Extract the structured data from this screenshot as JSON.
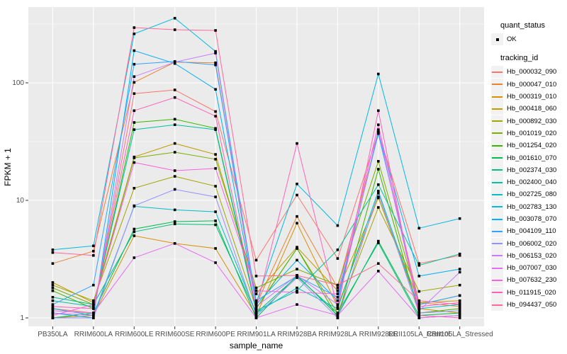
{
  "figure": {
    "panel_bg": "#EBEBEB",
    "grid_color": "#FFFFFF",
    "axis_text_color": "#4D4D4D",
    "tick_color": "#333333",
    "point_color": "#000000"
  },
  "legend": {
    "quant_status_title": "quant_status",
    "quant_status_items": [
      {
        "label": "OK",
        "symbol": "black-point"
      }
    ],
    "tracking_title": "tracking_id"
  },
  "chart_data": {
    "type": "line",
    "title": "",
    "xlabel": "sample_name",
    "ylabel": "FPKM + 1",
    "yscale": "log10",
    "yticks": [
      1,
      10,
      100
    ],
    "ytick_labels": [
      "1",
      "10",
      "100"
    ],
    "minor_gridlines": [
      3.162,
      31.62,
      316.2
    ],
    "ylim": [
      0.85,
      440
    ],
    "grid": true,
    "legend_position": "right",
    "marker": "small-black-point",
    "categories": [
      "PB350LA",
      "RRIM600LA",
      "RRIM600LE",
      "RRIM600SE",
      "RRIM600PE",
      "RRIM901LA",
      "RRIM928BA",
      "RRIM928LA",
      "RRIM928LE",
      "RRII105LA_Control",
      "RRII105LA_Stressed"
    ],
    "series": [
      {
        "name": "Hb_000032_090",
        "color": "#F8766D",
        "values": [
          1.2,
          1.1,
          81,
          87,
          57,
          3.1,
          11.1,
          3.2,
          38,
          2.9,
          3.4
        ]
      },
      {
        "name": "Hb_000047_010",
        "color": "#EA8331",
        "values": [
          2.9,
          3.7,
          101,
          150,
          148,
          1.3,
          7.3,
          1.8,
          37,
          1.35,
          1.25
        ]
      },
      {
        "name": "Hb_000319_010",
        "color": "#D89000",
        "values": [
          1.0,
          1.05,
          5.0,
          4.3,
          3.9,
          1.05,
          6.4,
          1.25,
          10.7,
          1.2,
          1.1
        ]
      },
      {
        "name": "Hb_000418_060",
        "color": "#C09B00",
        "values": [
          2.0,
          1.35,
          23.4,
          30.5,
          24.6,
          1.6,
          4.0,
          1.7,
          10.5,
          1.35,
          1.4
        ]
      },
      {
        "name": "Hb_000892_030",
        "color": "#A3A500",
        "values": [
          1.9,
          1.4,
          12.7,
          16.0,
          13.2,
          1.2,
          3.9,
          1.1,
          8.7,
          1.68,
          1.9
        ]
      },
      {
        "name": "Hb_001019_020",
        "color": "#7CAE00",
        "values": [
          1.8,
          1.3,
          23.0,
          25.7,
          22.4,
          1.8,
          2.6,
          1.9,
          21.5,
          1.3,
          1.55
        ]
      },
      {
        "name": "Hb_001254_020",
        "color": "#39B600",
        "values": [
          1.7,
          1.2,
          46,
          49,
          41,
          1.2,
          3.9,
          1.0,
          18.4,
          1.1,
          1.2
        ]
      },
      {
        "name": "Hb_001610_070",
        "color": "#00BB4E",
        "values": [
          1.0,
          1.1,
          5.7,
          6.6,
          6.7,
          1.0,
          2.3,
          1.05,
          4.5,
          1.05,
          1.1
        ]
      },
      {
        "name": "Hb_002374_030",
        "color": "#00BF7D",
        "values": [
          1.5,
          1.3,
          5.4,
          6.3,
          6.2,
          1.1,
          2.25,
          1.1,
          4.35,
          1.0,
          1.05
        ]
      },
      {
        "name": "Hb_002400_040",
        "color": "#00C1A3",
        "values": [
          1.4,
          1.25,
          40,
          44,
          40,
          1.15,
          1.7,
          3.8,
          13.6,
          2.8,
          3.5
        ]
      },
      {
        "name": "Hb_002725_080",
        "color": "#00BFC4",
        "values": [
          1.2,
          1.05,
          8.9,
          8.3,
          8.0,
          1.1,
          1.8,
          1.2,
          12.0,
          1.2,
          1.3
        ]
      },
      {
        "name": "Hb_002783_130",
        "color": "#00BAE0",
        "values": [
          3.8,
          4.1,
          261,
          355,
          185,
          1.35,
          13.8,
          6.1,
          119,
          5.8,
          7.0
        ]
      },
      {
        "name": "Hb_003078_070",
        "color": "#00B0F6",
        "values": [
          1.1,
          1.0,
          188,
          146,
          88,
          1.3,
          3.1,
          1.4,
          38,
          2.27,
          2.6
        ]
      },
      {
        "name": "Hb_004109_110",
        "color": "#35A2FF",
        "values": [
          1.3,
          1.9,
          144,
          152,
          142,
          1.4,
          2.27,
          1.5,
          37,
          1.3,
          1.55
        ]
      },
      {
        "name": "Hb_006002_020",
        "color": "#9590FF",
        "values": [
          1.0,
          1.0,
          9.0,
          12.4,
          10.7,
          1.05,
          2.2,
          1.0,
          11.5,
          1.1,
          1.15
        ]
      },
      {
        "name": "Hb_006153_020",
        "color": "#C77CFF",
        "values": [
          1.1,
          1.05,
          113,
          150,
          179,
          1.25,
          2.3,
          1.3,
          40,
          1.15,
          2.45
        ]
      },
      {
        "name": "Hb_007007_030",
        "color": "#E76BF3",
        "values": [
          1.15,
          1.1,
          3.25,
          4.3,
          2.95,
          1.0,
          1.3,
          1.05,
          2.5,
          1.0,
          1.05
        ]
      },
      {
        "name": "Hb_007632_230",
        "color": "#FA62DB",
        "values": [
          1.05,
          1.3,
          21,
          17.9,
          18.7,
          1.7,
          1.65,
          1.6,
          44,
          1.25,
          1.35
        ]
      },
      {
        "name": "Hb_011915_020",
        "color": "#FF62BC",
        "values": [
          1.25,
          1.2,
          58,
          75,
          52,
          1.2,
          30.5,
          1.2,
          58,
          1.05,
          1.0
        ]
      },
      {
        "name": "Hb_094437_050",
        "color": "#FF6A98",
        "values": [
          3.6,
          3.4,
          295,
          283,
          279,
          2.27,
          2.3,
          1.9,
          2.9,
          1.4,
          1.3
        ]
      }
    ]
  }
}
